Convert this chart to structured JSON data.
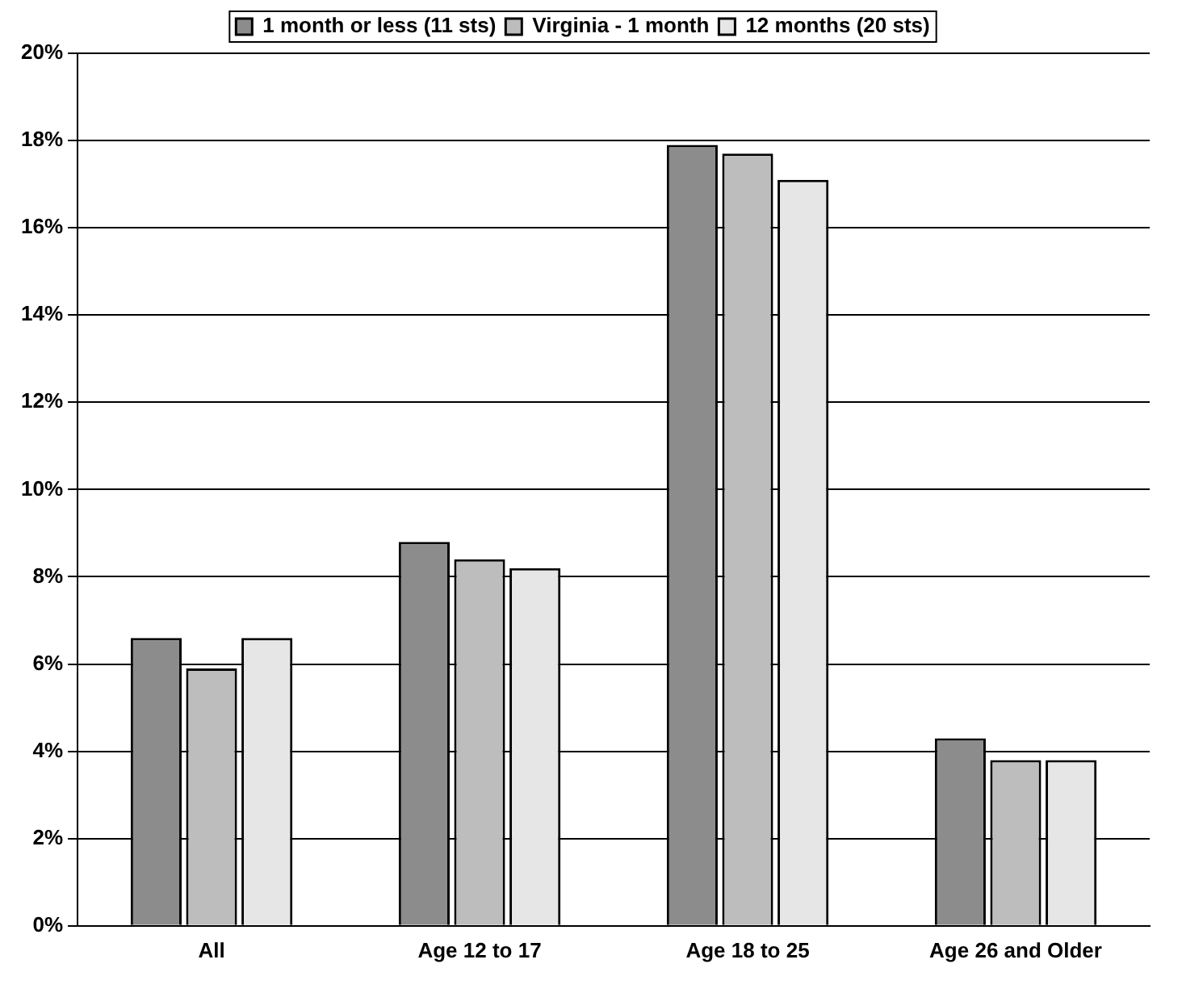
{
  "chart_data": {
    "type": "bar",
    "categories": [
      "All",
      "Age 12 to 17",
      "Age 18 to 25",
      "Age 26 and Older"
    ],
    "series": [
      {
        "name": "1 month or less (11 sts)",
        "color": "#8c8c8c",
        "values": [
          6.6,
          8.8,
          17.9,
          4.3
        ]
      },
      {
        "name": "Virginia - 1 month",
        "color": "#bdbdbd",
        "values": [
          5.9,
          8.4,
          17.7,
          3.8
        ]
      },
      {
        "name": "12 months (20 sts)",
        "color": "#e6e6e6",
        "values": [
          6.6,
          8.2,
          17.1,
          3.8
        ]
      }
    ],
    "ylim": [
      0,
      20
    ],
    "yticks": [
      {
        "value": 0,
        "label": "0%"
      },
      {
        "value": 2,
        "label": "2%"
      },
      {
        "value": 4,
        "label": "4%"
      },
      {
        "value": 6,
        "label": "6%"
      },
      {
        "value": 8,
        "label": "8%"
      },
      {
        "value": 10,
        "label": "10%"
      },
      {
        "value": 12,
        "label": "12%"
      },
      {
        "value": 14,
        "label": "14%"
      },
      {
        "value": 16,
        "label": "16%"
      },
      {
        "value": 18,
        "label": "18%"
      },
      {
        "value": 20,
        "label": "20%"
      }
    ],
    "grid": "y",
    "legend": "top"
  }
}
